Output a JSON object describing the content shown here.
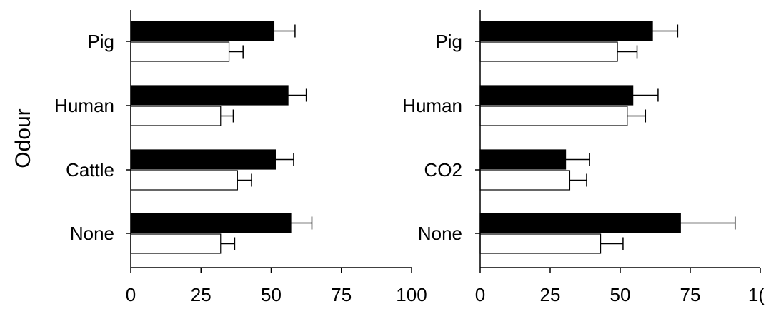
{
  "chart_data": [
    {
      "type": "bar",
      "orientation": "horizontal",
      "ylabel": "Odour",
      "xlabel": "",
      "xlim": [
        0,
        100
      ],
      "xticks": [
        "0",
        "25",
        "50",
        "75",
        "100"
      ],
      "categories": [
        "Pig",
        "Human",
        "Cattle",
        "None"
      ],
      "legend": "none",
      "grid": false,
      "series": [
        {
          "color": "#000000",
          "values": [
            51,
            56,
            51.5,
            57
          ],
          "errors": [
            7.5,
            6.5,
            6.5,
            7.5
          ]
        },
        {
          "color": "#ffffff",
          "values": [
            35,
            32,
            38,
            32
          ],
          "errors": [
            5,
            4.5,
            5,
            5
          ]
        }
      ]
    },
    {
      "type": "bar",
      "orientation": "horizontal",
      "ylabel": "",
      "xlabel": "",
      "xlim": [
        0,
        100
      ],
      "xticks": [
        "0",
        "25",
        "50",
        "75",
        "1("
      ],
      "categories": [
        "Pig",
        "Human",
        "CO2",
        "None"
      ],
      "legend": "none",
      "grid": false,
      "series": [
        {
          "color": "#000000",
          "values": [
            61.5,
            54.5,
            30.5,
            71.5
          ],
          "errors": [
            9,
            9,
            8.5,
            19.5
          ]
        },
        {
          "color": "#ffffff",
          "values": [
            49,
            52.5,
            32,
            43
          ],
          "errors": [
            7,
            6.5,
            6,
            8
          ]
        }
      ]
    }
  ]
}
